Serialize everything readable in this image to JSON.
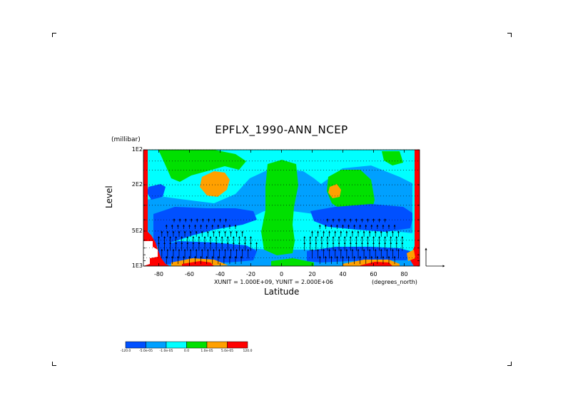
{
  "title": "EPFLX_1990-ANN_NCEP",
  "chart_data": {
    "type": "heatmap",
    "title": "EPFLX_1990-ANN_NCEP",
    "xlabel": "Latitude",
    "ylabel": "Level",
    "y_units": "(millibar)",
    "x_units": "(degrees_north)",
    "x_range": [
      -90,
      90
    ],
    "y_range": [
      1000,
      100
    ],
    "y_scale": "log",
    "xticks": [
      "-80",
      "-60",
      "-40",
      "-20",
      "0",
      "20",
      "40",
      "60",
      "80"
    ],
    "yticks": [
      "1E2",
      "2E2",
      "5E2",
      "1E3"
    ],
    "vector_scale_text": "XUNIT = 1.000E+09, YUNIT = 2.000E+06",
    "colorbar": {
      "levels": [
        "-120.0",
        "-5.0e-05",
        "-1.0e-05",
        "0.0",
        "1.0e-05",
        "5.0e-05",
        "120.0"
      ],
      "colors": [
        "#0050ff",
        "#00a0ff",
        "#00ffff",
        "#00e000",
        "#ffa000",
        "#ff0000"
      ]
    },
    "background_color": "#00a0ff",
    "grid": "dotted horizontal"
  }
}
